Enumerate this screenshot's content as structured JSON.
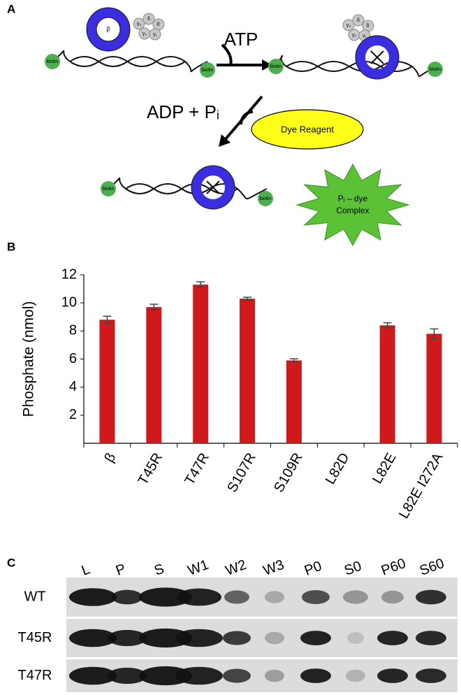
{
  "panel_a": {
    "label": "A",
    "clamp": "β",
    "loader": [
      "γ₃",
      "δ",
      "δ′",
      "γ₂",
      "γ₁"
    ],
    "biotin": "biotin",
    "atp": "ATP",
    "adp": "ADP + Pᵢ",
    "dye": "Dye Reagent",
    "complex": [
      "Pᵢ – dye",
      "Complex"
    ]
  },
  "chart_data": {
    "type": "bar",
    "panel_label": "B",
    "y_label": "Phosphate (nmol)",
    "categories": [
      "β",
      "T45R",
      "T47R",
      "S107R",
      "S109R",
      "L82D",
      "L82E",
      "L82E I272A"
    ],
    "values": [
      8.8,
      9.7,
      11.3,
      10.3,
      5.9,
      null,
      8.4,
      7.8
    ],
    "errors": [
      0.25,
      0.2,
      0.2,
      0.1,
      0.12,
      null,
      0.18,
      0.35
    ],
    "color": "#d0191b",
    "ylim": [
      0,
      12
    ],
    "yticks": [
      2,
      4,
      6,
      8,
      10,
      12
    ]
  },
  "panel_c": {
    "label": "C",
    "lanes": [
      "L",
      "P",
      "S",
      "W1",
      "W2",
      "W3",
      "P0",
      "S0",
      "P60",
      "S60"
    ],
    "rows": [
      "WT",
      "T45R",
      "T47R"
    ]
  }
}
